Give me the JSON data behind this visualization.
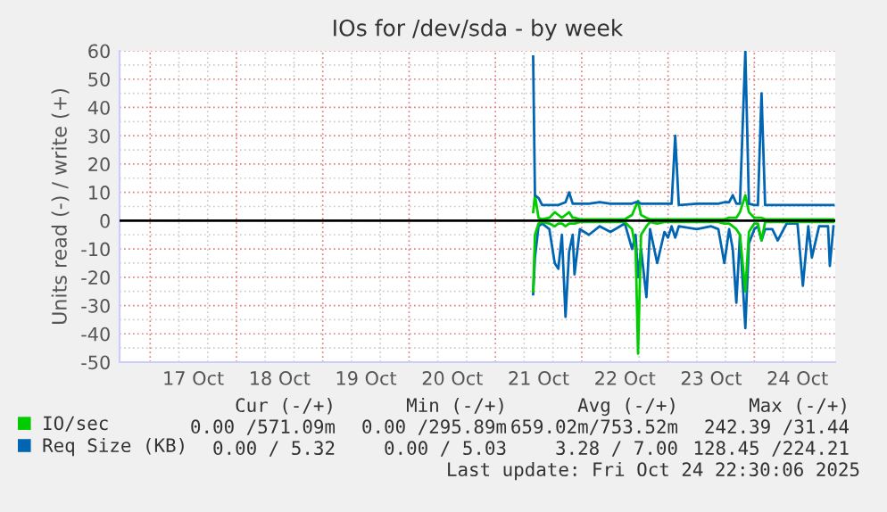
{
  "chart_data": {
    "type": "line",
    "title": "IOs for /dev/sda - by week",
    "ylabel": "Units read (-) / write (+)",
    "x": [
      "2025-10-21T10:30",
      "2025-10-21T11:00",
      "2025-10-21T12:00",
      "2025-10-21T13:00",
      "2025-10-21T15:00",
      "2025-10-21T16:30",
      "2025-10-21T17:30",
      "2025-10-21T18:30",
      "2025-10-21T19:30",
      "2025-10-21T20:30",
      "2025-10-21T21:30",
      "2025-10-21T22:00",
      "2025-10-21T23:30",
      "2025-10-22T02:00",
      "2025-10-22T05:00",
      "2025-10-22T08:00",
      "2025-10-22T12:00",
      "2025-10-22T14:00",
      "2025-10-22T15:00",
      "2025-10-22T15:40",
      "2025-10-22T16:30",
      "2025-10-22T18:00",
      "2025-10-22T19:00",
      "2025-10-22T21:00",
      "2025-10-22T23:00",
      "2025-10-23T00:00",
      "2025-10-23T01:00",
      "2025-10-23T02:00",
      "2025-10-23T03:00",
      "2025-10-23T08:00",
      "2025-10-23T12:00",
      "2025-10-23T14:00",
      "2025-10-23T15:40",
      "2025-10-23T17:00",
      "2025-10-23T18:00",
      "2025-10-23T19:00",
      "2025-10-23T20:00",
      "2025-10-23T21:30",
      "2025-10-23T22:30",
      "2025-10-24T00:00",
      "2025-10-24T01:00",
      "2025-10-24T02:00",
      "2025-10-24T03:00",
      "2025-10-24T05:00",
      "2025-10-24T06:30",
      "2025-10-24T09:00",
      "2025-10-24T12:00",
      "2025-10-24T13:30",
      "2025-10-24T15:00",
      "2025-10-24T16:00",
      "2025-10-24T18:00",
      "2025-10-24T20:30",
      "2025-10-24T21:00",
      "2025-10-24T22:00"
    ],
    "series": [
      {
        "color": "#0066b3",
        "values": [
          -26,
          -13,
          -2,
          -1,
          -3,
          -15,
          -17,
          -5,
          -34,
          -11,
          -5,
          -19,
          -3,
          -5,
          -2,
          -4,
          -1,
          -10,
          -5,
          -20,
          -10,
          -27,
          -3,
          -15,
          -4,
          -6,
          -2,
          -6,
          -2,
          -3,
          -2,
          -3,
          -15,
          -3,
          -10,
          -29,
          -5,
          -38,
          -8,
          -3,
          -2,
          -7,
          -3,
          -3,
          -7,
          -1,
          -1,
          -23,
          -2,
          -13,
          -2,
          -2,
          -16,
          -2
        ]
      },
      {
        "color": "#00cc00",
        "values": [
          -25,
          -5,
          -1,
          -0.5,
          -1,
          -2,
          -1,
          -1,
          -2,
          -1,
          -1,
          -1,
          -0.5,
          -0.5,
          -0.5,
          -0.5,
          -0.5,
          -3,
          -10,
          -47,
          -5,
          -2,
          -0.5,
          -1,
          -0.5,
          -0.5,
          -0.5,
          -0.5,
          -0.5,
          -0.5,
          -0.5,
          -0.5,
          -1,
          -1,
          -2,
          -3,
          -5,
          -25,
          -4,
          -1,
          -1,
          -7,
          -0.5,
          -0.5,
          -0.5,
          -0.5,
          -0.5,
          -0.5,
          -0.5,
          -0.5,
          -0.5,
          -0.5,
          -0.5,
          -0.5
        ]
      },
      {
        "name": "IO/sec",
        "color": "#00cc00",
        "values": [
          3,
          9,
          1,
          0.5,
          1,
          3,
          2,
          1,
          2,
          3,
          1,
          1,
          0.5,
          0.5,
          0.5,
          0.5,
          0.5,
          2,
          5,
          7,
          2,
          1,
          0.5,
          0.5,
          0.5,
          0.5,
          0.5,
          0.5,
          0.5,
          0.5,
          0.5,
          0.5,
          0.5,
          1,
          1,
          1,
          3,
          9,
          3,
          1,
          1,
          1,
          0.5,
          0.5,
          0.5,
          0.5,
          0.5,
          0.5,
          0.5,
          0.5,
          0.5,
          0.5,
          0.5,
          0.5
        ]
      },
      {
        "name": "Req Size (KB)",
        "color": "#0066b3",
        "values": [
          58,
          9,
          8,
          5.5,
          5.5,
          5.5,
          5.5,
          6,
          6.5,
          10,
          6,
          6,
          6,
          6,
          6.5,
          6,
          6,
          6,
          6.5,
          6.5,
          6,
          6,
          6,
          6,
          6,
          6,
          6,
          30,
          5.5,
          6,
          6,
          6,
          6.5,
          6.5,
          9,
          6,
          6,
          60,
          6,
          5.5,
          5.5,
          45,
          5.5,
          5.5,
          5.5,
          5.5,
          5.5,
          5.5,
          5.5,
          5.5,
          5.5,
          5.5,
          5.5,
          5.5
        ]
      }
    ],
    "xlim": [
      "2025-10-16T15:30",
      "2025-10-24T22:30"
    ],
    "xticks": [
      {
        "value": "2025-10-17T12:00",
        "label": "17 Oct"
      },
      {
        "value": "2025-10-18T12:00",
        "label": "18 Oct"
      },
      {
        "value": "2025-10-19T12:00",
        "label": "19 Oct"
      },
      {
        "value": "2025-10-20T12:00",
        "label": "20 Oct"
      },
      {
        "value": "2025-10-21T12:00",
        "label": "21 Oct"
      },
      {
        "value": "2025-10-22T12:00",
        "label": "22 Oct"
      },
      {
        "value": "2025-10-23T12:00",
        "label": "23 Oct"
      },
      {
        "value": "2025-10-24T12:00",
        "label": "24 Oct"
      }
    ],
    "ylim": [
      -50,
      60
    ],
    "yticks": [
      -50,
      -40,
      -30,
      -20,
      -10,
      0,
      10,
      20,
      30,
      40,
      50,
      60
    ],
    "ref_lines": [
      {
        "axis": "y",
        "value": 0,
        "color": "#000000"
      }
    ],
    "grid": true,
    "legend": "bottom left",
    "annotations": [
      "Cur (-/+)",
      "Min (-/+)",
      "Avg (-/+)",
      "Max (-/+)",
      "0.00 /571.09m",
      "0.00 /295.89m",
      "659.02m/753.52m",
      "242.39 /31.44",
      "0.00 / 5.32",
      "0.00 / 5.03",
      "3.28 / 7.00",
      "128.45 /224.21",
      "Last update: Fri Oct 24 22:30:06 2025"
    ]
  }
}
